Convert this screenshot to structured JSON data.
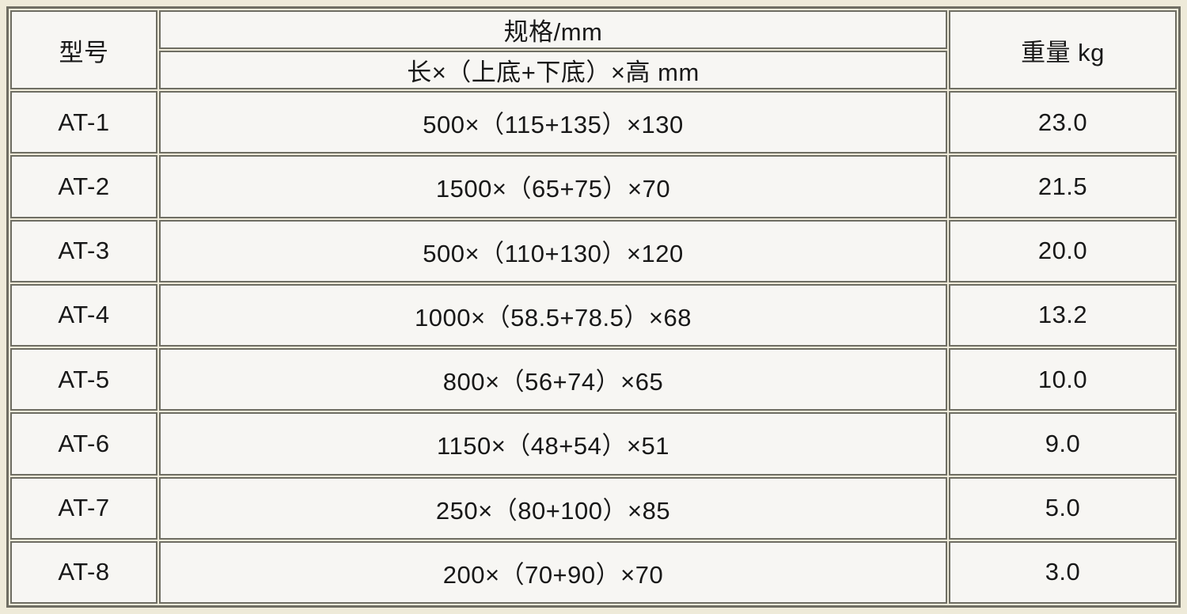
{
  "table": {
    "headers": {
      "model": "型号",
      "spec_group": "规格/mm",
      "spec_sub": "长×（上底+下底）×高 mm",
      "weight": "重量 kg"
    },
    "rows": [
      {
        "model": "AT-1",
        "spec": "500×（115+135）×130",
        "weight": "23.0"
      },
      {
        "model": "AT-2",
        "spec": "1500×（65+75）×70",
        "weight": "21.5"
      },
      {
        "model": "AT-3",
        "spec": "500×（110+130）×120",
        "weight": "20.0"
      },
      {
        "model": "AT-4",
        "spec": "1000×（58.5+78.5）×68",
        "weight": "13.2"
      },
      {
        "model": "AT-5",
        "spec": "800×（56+74）×65",
        "weight": "10.0"
      },
      {
        "model": "AT-6",
        "spec": "1150×（48+54）×51",
        "weight": "9.0"
      },
      {
        "model": "AT-7",
        "spec": "250×（80+100）×85",
        "weight": "5.0"
      },
      {
        "model": "AT-8",
        "spec": "200×（70+90）×70",
        "weight": "3.0"
      }
    ]
  },
  "colors": {
    "border": "#6f6e63",
    "cell_background": "#f7f6f3",
    "table_background": "#eeead9",
    "text": "#181818"
  },
  "chart_data": {
    "type": "table",
    "columns": [
      "型号",
      "规格/mm 长×（上底+下底）×高 mm",
      "重量 kg"
    ],
    "rows": [
      [
        "AT-1",
        "500×（115+135）×130",
        23.0
      ],
      [
        "AT-2",
        "1500×（65+75）×70",
        21.5
      ],
      [
        "AT-3",
        "500×（110+130）×120",
        20.0
      ],
      [
        "AT-4",
        "1000×（58.5+78.5）×68",
        13.2
      ],
      [
        "AT-5",
        "800×（56+74）×65",
        10.0
      ],
      [
        "AT-6",
        "1150×（48+54）×51",
        9.0
      ],
      [
        "AT-7",
        "250×（80+100）×85",
        5.0
      ],
      [
        "AT-8",
        "200×（70+90）×70",
        3.0
      ]
    ]
  }
}
